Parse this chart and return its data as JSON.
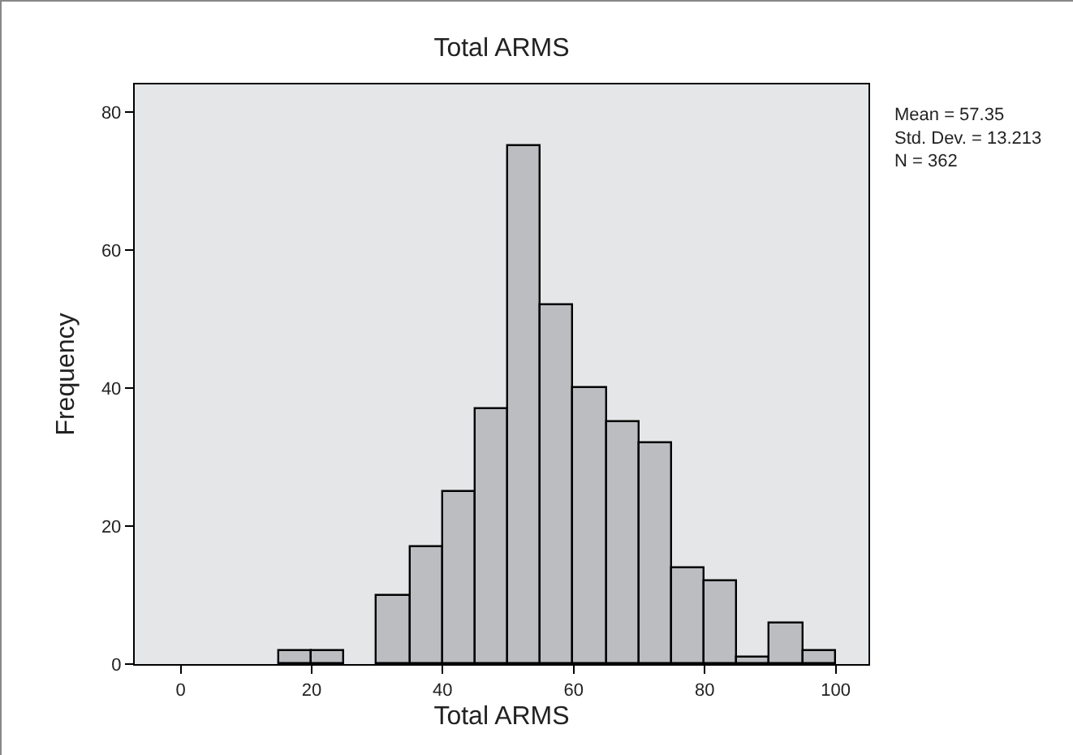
{
  "chart_data": {
    "type": "histogram",
    "title": "Total ARMS",
    "xlabel": "Total ARMS",
    "ylabel": "Frequency",
    "bins": [
      15,
      20,
      25,
      30,
      35,
      40,
      45,
      50,
      55,
      60,
      65,
      70,
      75,
      80,
      85,
      90,
      95,
      100
    ],
    "values": [
      2,
      2,
      0,
      10,
      17,
      25,
      37,
      75,
      52,
      40,
      35,
      32,
      14,
      12,
      1,
      6,
      2
    ],
    "color": "#bcbdc1",
    "xlim": [
      -7,
      105
    ],
    "xticks": [
      0,
      20,
      40,
      60,
      80,
      100
    ],
    "ylim": [
      0,
      84
    ],
    "yticks": [
      0,
      20,
      40,
      60,
      80
    ],
    "grid": false,
    "annotations": [
      "Mean = 57.35",
      "Std. Dev. = 13.213",
      "N = 362"
    ]
  }
}
